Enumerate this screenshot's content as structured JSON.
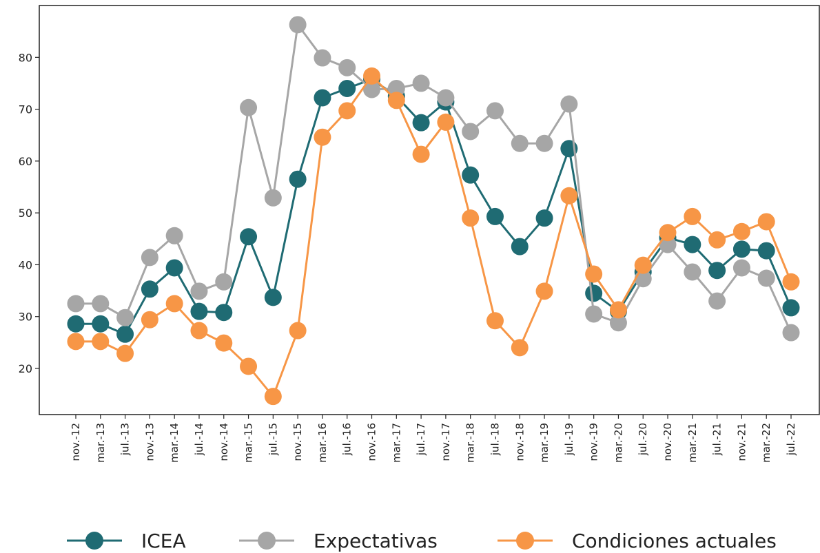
{
  "chart_data": {
    "type": "line",
    "categories": [
      "nov.-12",
      "mar.-13",
      "jul.-13",
      "nov.-13",
      "mar.-14",
      "jul.-14",
      "nov.-14",
      "mar.-15",
      "jul.-15",
      "nov.-15",
      "mar.-16",
      "jul.-16",
      "nov.-16",
      "mar.-17",
      "jul.-17",
      "nov.-17",
      "mar.-18",
      "jul.-18",
      "nov.-18",
      "mar.-19",
      "jul.-19",
      "nov.-19",
      "mar.-20",
      "jul.-20",
      "nov.-20",
      "mar.-21",
      "jul.-21",
      "nov.-21",
      "mar.-22",
      "jul.-22"
    ],
    "series": [
      {
        "name": "ICEA",
        "color": "#1f6b73",
        "values": [
          28.6,
          28.6,
          26.6,
          35.3,
          39.4,
          31.0,
          30.8,
          45.4,
          33.7,
          56.5,
          72.2,
          74.0,
          75.8,
          72.5,
          67.4,
          71.4,
          57.3,
          49.3,
          43.5,
          49.0,
          62.4,
          34.5,
          31.0,
          38.6,
          45.2,
          43.9,
          38.9,
          43.0,
          42.7,
          31.7
        ]
      },
      {
        "name": "Expectativas",
        "color": "#a6a6a6",
        "values": [
          32.5,
          32.5,
          29.8,
          41.4,
          45.6,
          34.9,
          36.7,
          70.3,
          52.9,
          86.3,
          79.9,
          78.0,
          73.8,
          74.0,
          75.0,
          72.2,
          65.7,
          69.7,
          63.4,
          63.4,
          71.0,
          30.5,
          28.8,
          37.3,
          43.9,
          38.6,
          33.0,
          39.4,
          37.4,
          26.9
        ]
      },
      {
        "name": "Condiciones actuales",
        "color": "#f79646",
        "values": [
          25.2,
          25.2,
          22.9,
          29.4,
          32.5,
          27.3,
          24.9,
          20.4,
          14.6,
          27.3,
          64.6,
          69.7,
          76.4,
          71.7,
          61.3,
          67.5,
          49.0,
          29.2,
          24.0,
          34.9,
          53.3,
          38.2,
          31.3,
          39.9,
          46.2,
          49.3,
          44.8,
          46.4,
          48.3,
          36.7
        ]
      }
    ],
    "ylim": [
      11.1,
      90
    ],
    "yticks": [
      20,
      30,
      40,
      50,
      60,
      70,
      80
    ],
    "grid": false,
    "legend": "bottom"
  }
}
